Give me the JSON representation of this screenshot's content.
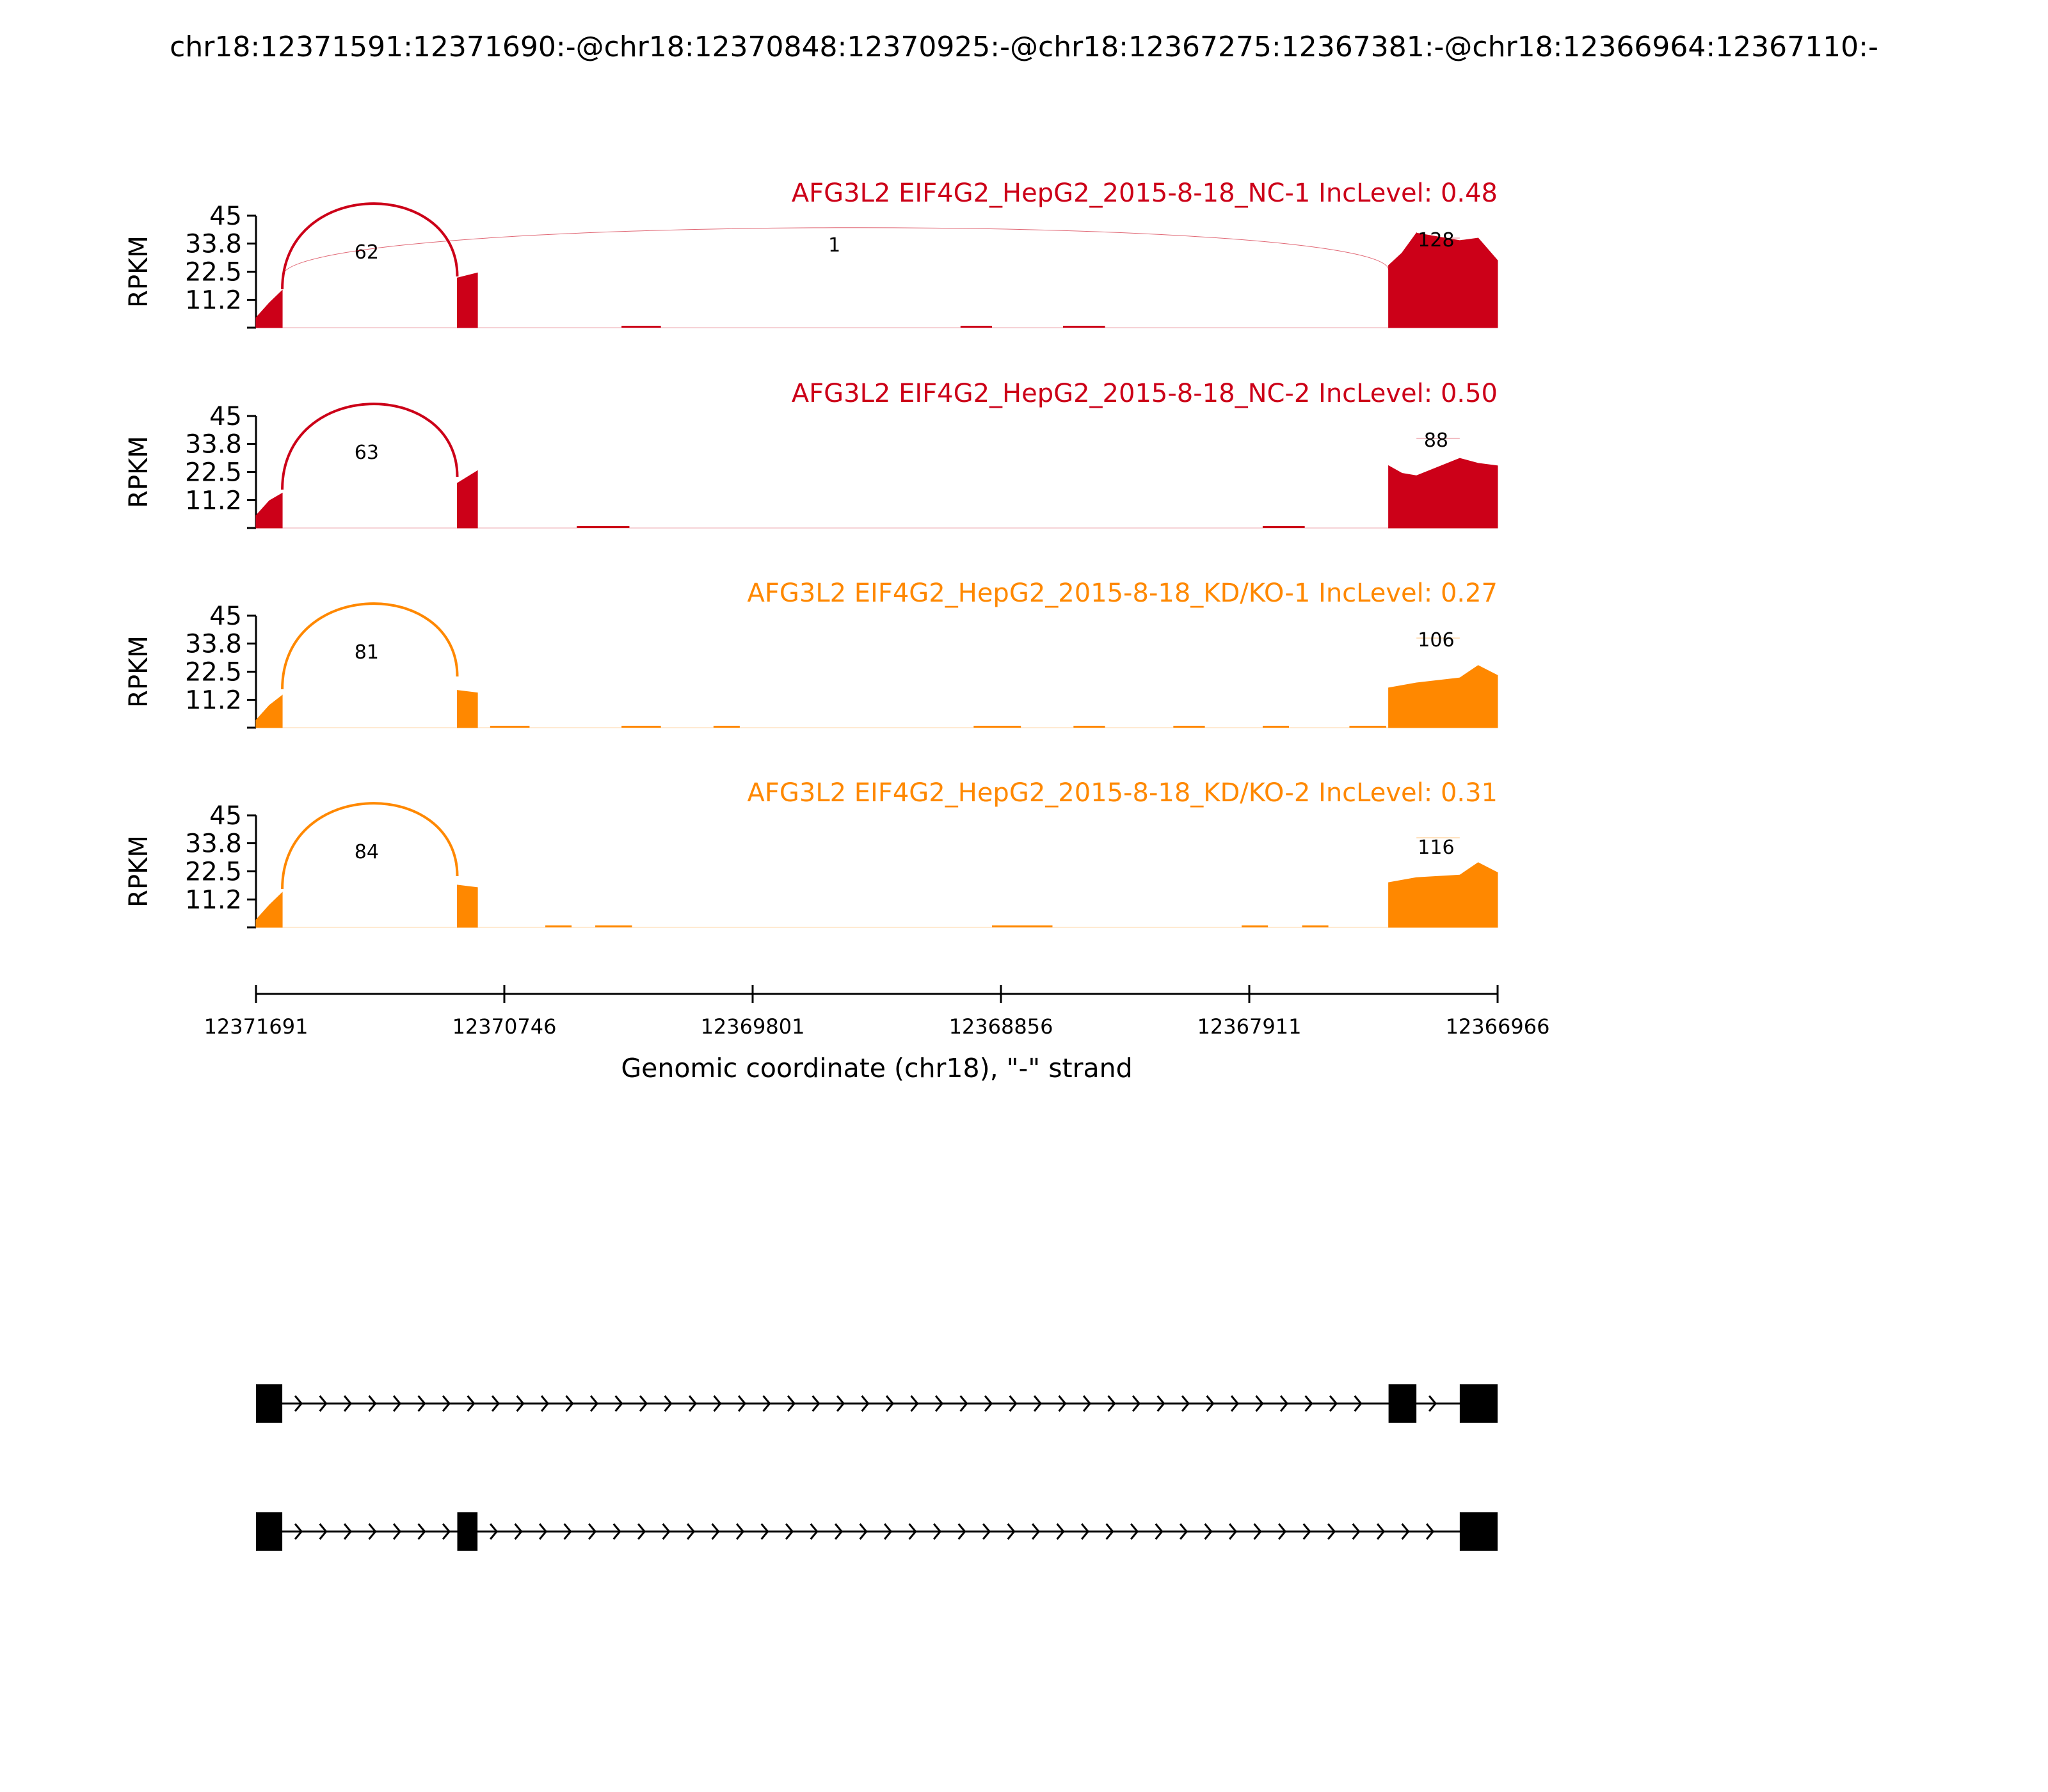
{
  "chart_data": {
    "type": "area",
    "title": "chr18:12371591:12371690:-@chr18:12370848:12370925:-@chr18:12367275:12367381:-@chr18:12366964:12367110:-",
    "ylabel": "RPKM",
    "xlabel": "Genomic coordinate (chr18), \"-\" strand",
    "ylim": [
      0,
      45
    ],
    "yticks": [
      "45",
      "33.8",
      "22.5",
      "11.2"
    ],
    "xlim": [
      12371691,
      12366966
    ],
    "xticks": [
      "12371691",
      "12370746",
      "12369801",
      "12368856",
      "12367911",
      "12366966"
    ],
    "colors": {
      "NC": "#cc0018",
      "KD": "#ff8800",
      "axis": "#000000",
      "exon": "#000000"
    },
    "exons": [
      {
        "start": 12371691,
        "end": 12371591
      },
      {
        "start": 12370925,
        "end": 12370848
      },
      {
        "start": 12367381,
        "end": 12367275
      },
      {
        "start": 12367110,
        "end": 12366966
      }
    ],
    "series": [
      {
        "name": "AFG3L2 EIF4G2_HepG2_2015-8-18_NC-1 IncLevel: 0.48",
        "group": "NC",
        "coverage": [
          [
            12371691,
            4
          ],
          [
            12371640,
            10
          ],
          [
            12371591,
            15
          ],
          [
            12370925,
            20
          ],
          [
            12370848,
            22
          ],
          [
            12367381,
            25
          ],
          [
            12367330,
            30
          ],
          [
            12367275,
            38
          ],
          [
            12367110,
            35
          ],
          [
            12367040,
            36
          ],
          [
            12366966,
            27
          ]
        ],
        "small_reads": [
          [
            12370300,
            12370150
          ],
          [
            12369010,
            12368890
          ],
          [
            12368620,
            12368460
          ]
        ],
        "junctions": [
          {
            "from": 12371591,
            "to": 12370925,
            "count": "62",
            "label_x": 12371270,
            "weight": "major"
          },
          {
            "from": 12371591,
            "to": 12367381,
            "count": "1",
            "label_x": 12369490,
            "weight": "minor"
          },
          {
            "from": 12367275,
            "to": 12367110,
            "count": "128",
            "label_x": 12367200,
            "weight": "flat"
          }
        ]
      },
      {
        "name": "AFG3L2 EIF4G2_HepG2_2015-8-18_NC-2 IncLevel: 0.50",
        "group": "NC",
        "coverage": [
          [
            12371691,
            5
          ],
          [
            12371640,
            11
          ],
          [
            12371591,
            14
          ],
          [
            12370925,
            18
          ],
          [
            12370848,
            23
          ],
          [
            12367381,
            25
          ],
          [
            12367330,
            22
          ],
          [
            12367275,
            21
          ],
          [
            12367110,
            28
          ],
          [
            12367040,
            26
          ],
          [
            12366966,
            25
          ]
        ],
        "small_reads": [
          [
            12370470,
            12370270
          ],
          [
            12367860,
            12367700
          ]
        ],
        "junctions": [
          {
            "from": 12371591,
            "to": 12370925,
            "count": "63",
            "label_x": 12371270,
            "weight": "major"
          },
          {
            "from": 12367275,
            "to": 12367110,
            "count": "88",
            "label_x": 12367200,
            "weight": "flat"
          }
        ]
      },
      {
        "name": "AFG3L2 EIF4G2_HepG2_2015-8-18_KD/KO-1 IncLevel: 0.27",
        "group": "KD",
        "coverage": [
          [
            12371691,
            3
          ],
          [
            12371640,
            9
          ],
          [
            12371591,
            13
          ],
          [
            12370925,
            15
          ],
          [
            12370848,
            14
          ],
          [
            12367381,
            16
          ],
          [
            12367275,
            18
          ],
          [
            12367110,
            20
          ],
          [
            12367040,
            25
          ],
          [
            12366966,
            21
          ]
        ],
        "small_reads": [
          [
            12370800,
            12370650
          ],
          [
            12370300,
            12370150
          ],
          [
            12369950,
            12369850
          ],
          [
            12368960,
            12368780
          ],
          [
            12368580,
            12368460
          ],
          [
            12368200,
            12368080
          ],
          [
            12367860,
            12367760
          ],
          [
            12367530,
            12367390
          ]
        ],
        "junctions": [
          {
            "from": 12371591,
            "to": 12370925,
            "count": "81",
            "label_x": 12371270,
            "weight": "major"
          },
          {
            "from": 12367275,
            "to": 12367110,
            "count": "106",
            "label_x": 12367200,
            "weight": "flat"
          }
        ]
      },
      {
        "name": "AFG3L2 EIF4G2_HepG2_2015-8-18_KD/KO-2 IncLevel: 0.31",
        "group": "KD",
        "coverage": [
          [
            12371691,
            3
          ],
          [
            12371640,
            9
          ],
          [
            12371591,
            14
          ],
          [
            12370925,
            17
          ],
          [
            12370848,
            16
          ],
          [
            12367381,
            18
          ],
          [
            12367275,
            20
          ],
          [
            12367110,
            21
          ],
          [
            12367040,
            26
          ],
          [
            12366966,
            22
          ]
        ],
        "small_reads": [
          [
            12370590,
            12370490
          ],
          [
            12370400,
            12370260
          ],
          [
            12368890,
            12368660
          ],
          [
            12367940,
            12367840
          ],
          [
            12367710,
            12367610
          ]
        ],
        "junctions": [
          {
            "from": 12371591,
            "to": 12370925,
            "count": "84",
            "label_x": 12371270,
            "weight": "major"
          },
          {
            "from": 12367275,
            "to": 12367110,
            "count": "116",
            "label_x": 12367200,
            "weight": "flat"
          }
        ]
      }
    ],
    "isoforms": [
      {
        "exon_indices": [
          0,
          2,
          3
        ]
      },
      {
        "exon_indices": [
          0,
          1,
          3
        ]
      }
    ]
  }
}
